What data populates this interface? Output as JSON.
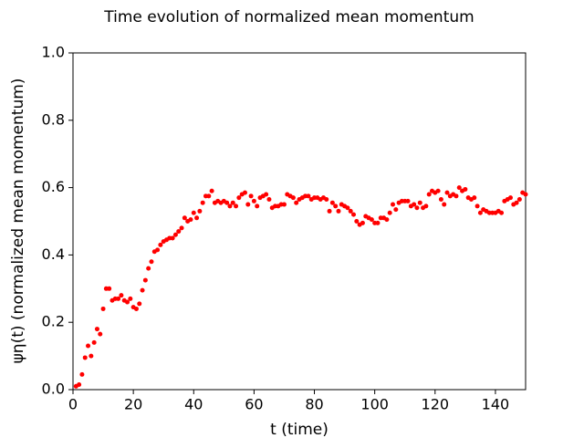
{
  "chart_data": {
    "type": "scatter",
    "title": "Time evolution of normalized mean momentum",
    "xlabel": "t (time)",
    "ylabel": "ψη(t) (normalized mean momentum)",
    "xlim": [
      0,
      150
    ],
    "ylim": [
      0,
      1
    ],
    "xticks": [
      0,
      20,
      40,
      60,
      80,
      100,
      120,
      140
    ],
    "yticks": [
      {
        "value": 0,
        "label": "0.0"
      },
      0.2,
      0.4,
      0.6,
      0.8,
      {
        "value": 1,
        "label": "1.0"
      }
    ],
    "grid": false,
    "series": [
      {
        "color": "#ff0000",
        "x": [
          1,
          2,
          3,
          4,
          5,
          6,
          7,
          8,
          9,
          10,
          11,
          12,
          13,
          14,
          15,
          16,
          17,
          18,
          19,
          20,
          21,
          22,
          23,
          24,
          25,
          26,
          27,
          28,
          29,
          30,
          31,
          32,
          33,
          34,
          35,
          36,
          37,
          38,
          39,
          40,
          41,
          42,
          43,
          44,
          45,
          46,
          47,
          48,
          49,
          50,
          51,
          52,
          53,
          54,
          55,
          56,
          57,
          58,
          59,
          60,
          61,
          62,
          63,
          64,
          65,
          66,
          67,
          68,
          69,
          70,
          71,
          72,
          73,
          74,
          75,
          76,
          77,
          78,
          79,
          80,
          81,
          82,
          83,
          84,
          85,
          86,
          87,
          88,
          89,
          90,
          91,
          92,
          93,
          94,
          95,
          96,
          97,
          98,
          99,
          100,
          101,
          102,
          103,
          104,
          105,
          106,
          107,
          108,
          109,
          110,
          111,
          112,
          113,
          114,
          115,
          116,
          117,
          118,
          119,
          120,
          121,
          122,
          123,
          124,
          125,
          126,
          127,
          128,
          129,
          130,
          131,
          132,
          133,
          134,
          135,
          136,
          137,
          138,
          139,
          140,
          141,
          142,
          143,
          144,
          145,
          146,
          147,
          148,
          149,
          150
        ],
        "values": [
          0.01,
          0.015,
          0.045,
          0.095,
          0.13,
          0.1,
          0.14,
          0.18,
          0.165,
          0.24,
          0.3,
          0.3,
          0.265,
          0.27,
          0.27,
          0.28,
          0.265,
          0.26,
          0.27,
          0.245,
          0.24,
          0.255,
          0.295,
          0.325,
          0.36,
          0.38,
          0.41,
          0.415,
          0.43,
          0.44,
          0.445,
          0.45,
          0.45,
          0.46,
          0.47,
          0.48,
          0.51,
          0.5,
          0.505,
          0.525,
          0.51,
          0.53,
          0.555,
          0.575,
          0.575,
          0.59,
          0.555,
          0.56,
          0.555,
          0.56,
          0.555,
          0.545,
          0.555,
          0.545,
          0.57,
          0.58,
          0.585,
          0.55,
          0.575,
          0.56,
          0.545,
          0.57,
          0.575,
          0.58,
          0.565,
          0.54,
          0.545,
          0.545,
          0.55,
          0.55,
          0.58,
          0.575,
          0.57,
          0.555,
          0.565,
          0.57,
          0.575,
          0.575,
          0.565,
          0.57,
          0.57,
          0.565,
          0.57,
          0.565,
          0.53,
          0.555,
          0.545,
          0.53,
          0.55,
          0.545,
          0.54,
          0.53,
          0.52,
          0.5,
          0.49,
          0.495,
          0.515,
          0.51,
          0.505,
          0.495,
          0.495,
          0.51,
          0.51,
          0.505,
          0.525,
          0.55,
          0.535,
          0.555,
          0.56,
          0.56,
          0.56,
          0.545,
          0.55,
          0.54,
          0.555,
          0.54,
          0.545,
          0.58,
          0.59,
          0.585,
          0.59,
          0.565,
          0.55,
          0.585,
          0.575,
          0.58,
          0.575,
          0.6,
          0.59,
          0.595,
          0.57,
          0.565,
          0.57,
          0.545,
          0.525,
          0.535,
          0.53,
          0.525,
          0.525,
          0.525,
          0.53,
          0.525,
          0.56,
          0.565,
          0.57,
          0.55,
          0.555,
          0.565,
          0.585,
          0.58
        ]
      }
    ]
  }
}
